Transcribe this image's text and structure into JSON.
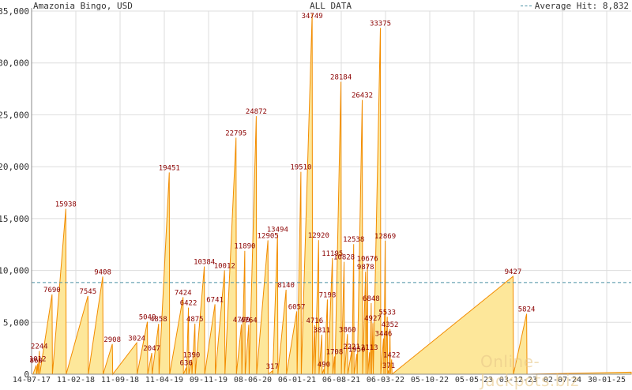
{
  "header": {
    "title": "Amazonia Bingo, USD",
    "range_label": "ALL DATA",
    "legend_label": "Average Hit: 8,832"
  },
  "watermark": "Online-Jackpots.biz",
  "colors": {
    "fill": "#fde79a",
    "line": "#f28c00",
    "label": "#8b0000",
    "grid": "#dddddd",
    "average": "#4a90a4",
    "axis": "#888888"
  },
  "chart_data": {
    "type": "area",
    "title": "Amazonia Bingo, USD",
    "ylim": [
      0,
      35000
    ],
    "y_ticks": [
      "0",
      "5,000",
      "10,000",
      "15,000",
      "20,000",
      "25,000",
      "30,000",
      "35,000"
    ],
    "x_ticks": [
      "14-07-17",
      "11-02-18",
      "11-09-18",
      "11-04-19",
      "09-11-19",
      "08-06-20",
      "06-01-21",
      "06-08-21",
      "06-03-22",
      "05-10-22",
      "05-05-23",
      "03-12-23",
      "02-07-24",
      "30-01-25"
    ],
    "average_hit": 8832,
    "grid": true,
    "legend_position": "top-right",
    "peaks": [
      {
        "date": "2017-08-05",
        "value": 860
      },
      {
        "date": "2017-08-12",
        "value": 1012
      },
      {
        "date": "2017-08-20",
        "value": 2244
      },
      {
        "date": "2017-10-20",
        "value": 7690
      },
      {
        "date": "2017-12-25",
        "value": 15938
      },
      {
        "date": "2018-04-10",
        "value": 7545
      },
      {
        "date": "2018-06-20",
        "value": 9408
      },
      {
        "date": "2018-08-05",
        "value": 2908
      },
      {
        "date": "2018-11-30",
        "value": 3024
      },
      {
        "date": "2019-01-20",
        "value": 5049
      },
      {
        "date": "2019-02-10",
        "value": 2047
      },
      {
        "date": "2019-03-15",
        "value": 4858
      },
      {
        "date": "2019-05-05",
        "value": 19451
      },
      {
        "date": "2019-07-10",
        "value": 7424
      },
      {
        "date": "2019-07-25",
        "value": 636
      },
      {
        "date": "2019-08-05",
        "value": 6422
      },
      {
        "date": "2019-08-20",
        "value": 1390
      },
      {
        "date": "2019-09-05",
        "value": 4875
      },
      {
        "date": "2019-10-20",
        "value": 10384
      },
      {
        "date": "2019-12-10",
        "value": 6741
      },
      {
        "date": "2020-01-25",
        "value": 10012
      },
      {
        "date": "2020-03-20",
        "value": 22795
      },
      {
        "date": "2020-04-15",
        "value": 4790
      },
      {
        "date": "2020-05-01",
        "value": 11890
      },
      {
        "date": "2020-05-20",
        "value": 4764
      },
      {
        "date": "2020-06-25",
        "value": 24872
      },
      {
        "date": "2020-08-20",
        "value": 12905
      },
      {
        "date": "2020-09-10",
        "value": 317
      },
      {
        "date": "2020-10-05",
        "value": 13494
      },
      {
        "date": "2020-11-15",
        "value": 8140
      },
      {
        "date": "2021-01-05",
        "value": 6057
      },
      {
        "date": "2021-01-25",
        "value": 19510
      },
      {
        "date": "2021-03-20",
        "value": 34749
      },
      {
        "date": "2021-04-01",
        "value": 4716
      },
      {
        "date": "2021-04-20",
        "value": 12920
      },
      {
        "date": "2021-05-05",
        "value": 3811
      },
      {
        "date": "2021-05-15",
        "value": 490
      },
      {
        "date": "2021-06-01",
        "value": 7198
      },
      {
        "date": "2021-06-25",
        "value": 11195
      },
      {
        "date": "2021-07-05",
        "value": 1708
      },
      {
        "date": "2021-08-05",
        "value": 28184
      },
      {
        "date": "2021-08-20",
        "value": 10828
      },
      {
        "date": "2021-09-05",
        "value": 3860
      },
      {
        "date": "2021-09-25",
        "value": 2221
      },
      {
        "date": "2021-10-05",
        "value": 12538
      },
      {
        "date": "2021-10-20",
        "value": 1950
      },
      {
        "date": "2021-11-15",
        "value": 26432
      },
      {
        "date": "2021-12-01",
        "value": 9878
      },
      {
        "date": "2021-12-10",
        "value": 10676
      },
      {
        "date": "2021-12-20",
        "value": 2113
      },
      {
        "date": "2021-12-28",
        "value": 6848
      },
      {
        "date": "2022-01-05",
        "value": 4927
      },
      {
        "date": "2022-02-10",
        "value": 33375
      },
      {
        "date": "2022-02-25",
        "value": 3446
      },
      {
        "date": "2022-03-05",
        "value": 12869
      },
      {
        "date": "2022-03-15",
        "value": 5533
      },
      {
        "date": "2022-03-22",
        "value": 371
      },
      {
        "date": "2022-03-28",
        "value": 4352
      },
      {
        "date": "2022-04-05",
        "value": 1422
      },
      {
        "date": "2023-11-08",
        "value": 9427
      },
      {
        "date": "2024-01-12",
        "value": 5824
      }
    ]
  }
}
